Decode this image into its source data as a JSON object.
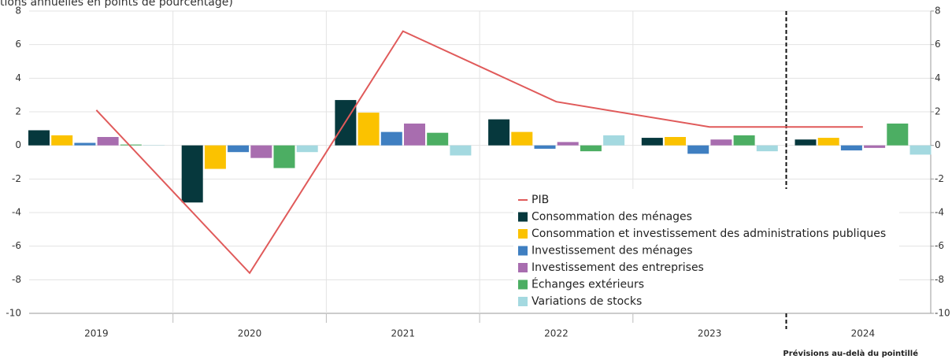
{
  "chart_data": {
    "type": "bar",
    "subtitle": "tions annuelles en points de pourcentage)",
    "note": "Prévisions au-delà du pointillé",
    "forecast_divider_after": "2023",
    "categories": [
      "2019",
      "2020",
      "2021",
      "2022",
      "2023",
      "2024"
    ],
    "series": [
      {
        "name": "PIB",
        "type": "line",
        "color": "#e05a5a",
        "values": [
          2.1,
          -7.6,
          6.8,
          2.6,
          1.1,
          1.1
        ]
      },
      {
        "name": "Consommation des ménages",
        "type": "bar",
        "color": "#06383d",
        "values": [
          0.9,
          -3.4,
          2.7,
          1.55,
          0.45,
          0.35
        ]
      },
      {
        "name": "Consommation et investissement des administrations publiques",
        "type": "bar",
        "color": "#fbc200",
        "values": [
          0.6,
          -1.4,
          1.95,
          0.8,
          0.5,
          0.45
        ]
      },
      {
        "name": "Investissement des ménages",
        "type": "bar",
        "color": "#3f7fc1",
        "values": [
          0.15,
          -0.4,
          0.8,
          -0.2,
          -0.5,
          -0.3
        ]
      },
      {
        "name": "Investissement des entreprises",
        "type": "bar",
        "color": "#a86daf",
        "values": [
          0.5,
          -0.75,
          1.3,
          0.2,
          0.35,
          -0.15
        ]
      },
      {
        "name": "Échanges extérieurs",
        "type": "bar",
        "color": "#4cae63",
        "values": [
          0.05,
          -1.35,
          0.75,
          -0.35,
          0.6,
          1.3
        ]
      },
      {
        "name": "Variations de stocks",
        "type": "bar",
        "color": "#a4d9e0",
        "values": [
          0.02,
          -0.4,
          -0.6,
          0.6,
          -0.35,
          -0.55
        ]
      }
    ],
    "ylim": [
      -10,
      8
    ],
    "yticks": [
      -10,
      -8,
      -6,
      -4,
      -2,
      0,
      2,
      4,
      6,
      8
    ],
    "grid": true
  }
}
